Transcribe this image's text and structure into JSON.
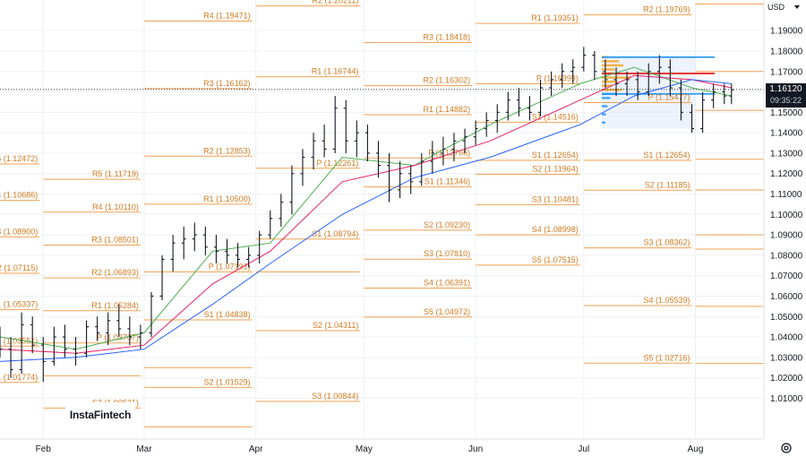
{
  "header": {
    "currency": "USD"
  },
  "watermark": "InstaFintech",
  "last_price": {
    "value": "1.16120",
    "countdown": "09:35:22"
  },
  "icons": {
    "settings": "gear-icon",
    "currency_dropdown": "chevron-down-icon"
  },
  "colors": {
    "pivot": "#f0a252",
    "pivot_text": "#d17b1f",
    "ma_fast": "#4caf50",
    "ma_mid": "#e91e63",
    "ma_slow": "#2962ff",
    "candle": "#131722",
    "grid": "#eef0f3",
    "profile_fill": "#f5a623",
    "profile_blue": "#2196f3",
    "level_red": "#e53935"
  },
  "chart_data": {
    "type": "candlestick",
    "symbol_quote": "USD",
    "y_range": [
      0.99,
      1.205
    ],
    "x_range": [
      "2025-01-20",
      "2025-08-20"
    ],
    "y_ticks": [
      "1.19000",
      "1.18000",
      "1.17000",
      "1.16000",
      "1.15000",
      "1.14000",
      "1.13000",
      "1.12000",
      "1.11000",
      "1.10000",
      "1.09000",
      "1.08000",
      "1.07000",
      "1.06000",
      "1.05000",
      "1.04000",
      "1.03000",
      "1.02000",
      "1.01000"
    ],
    "x_ticks": [
      {
        "label": "Feb",
        "date": "2025-02-01"
      },
      {
        "label": "Mar",
        "date": "2025-03-01"
      },
      {
        "label": "Apr",
        "date": "2025-04-01"
      },
      {
        "label": "May",
        "date": "2025-05-01"
      },
      {
        "label": "Jun",
        "date": "2025-06-01"
      },
      {
        "label": "Jul",
        "date": "2025-07-01"
      },
      {
        "label": "Aug",
        "date": "2025-08-01"
      }
    ],
    "last_price": 1.1612,
    "pivot_periods": [
      {
        "from": "2025-01-20",
        "to": "2025-01-31",
        "levels": [
          {
            "name": "R5",
            "label": "5 (1.12472)",
            "value": 1.12472
          },
          {
            "name": "R4",
            "label": "4 (1.10686)",
            "value": 1.10686
          },
          {
            "name": "R3",
            "label": "3 (1.08900)",
            "value": 1.089
          },
          {
            "name": "R2",
            "label": "2 (1.07115)",
            "value": 1.07115
          },
          {
            "name": "R1",
            "label": "1 (1.05337)",
            "value": 1.05337
          },
          {
            "name": "P",
            "label": "(1.03551)",
            "value": 1.03551
          },
          {
            "name": "S1",
            "label": "1 (1.01774)",
            "value": 1.01774
          }
        ]
      },
      {
        "from": "2025-02-01",
        "to": "2025-02-28",
        "levels": [
          {
            "name": "R5",
            "label": "R5 (1.11719)",
            "value": 1.11719
          },
          {
            "name": "R4",
            "label": "R4 (1.10110)",
            "value": 1.1011
          },
          {
            "name": "R3",
            "label": "R3 (1.08501)",
            "value": 1.08501
          },
          {
            "name": "R2",
            "label": "R2 (1.06893)",
            "value": 1.06893
          },
          {
            "name": "R1",
            "label": "R1 (1.05284)",
            "value": 1.05284
          },
          {
            "name": "P",
            "label": "P (1.03707)",
            "value": 1.03707
          },
          {
            "name": "S1",
            "label": "",
            "value": 1.021
          },
          {
            "name": "S2",
            "label": "S2 (1.00521)",
            "value": 1.00521
          }
        ]
      },
      {
        "from": "2025-03-01",
        "to": "2025-03-31",
        "levels": [
          {
            "name": "R4",
            "label": "R4 (1.19471)",
            "value": 1.19471
          },
          {
            "name": "R3",
            "label": "R3 (1.16162)",
            "value": 1.16162
          },
          {
            "name": "R2",
            "label": "R2 (1.12853)",
            "value": 1.12853
          },
          {
            "name": "R1",
            "label": "R1 (1.10500)",
            "value": 1.105
          },
          {
            "name": "P",
            "label": "P (1.07191)",
            "value": 1.07191
          },
          {
            "name": "S1",
            "label": "S1 (1.04838)",
            "value": 1.04838
          },
          {
            "name": "S2",
            "label": "",
            "value": 1.025
          },
          {
            "name": "S3",
            "label": "S2 (1.01529)",
            "value": 1.01529
          },
          {
            "name": "S4",
            "label": "",
            "value": 0.996
          }
        ]
      },
      {
        "from": "2025-04-01",
        "to": "2025-04-30",
        "levels": [
          {
            "name": "R2",
            "label": "R2 (1.20211)",
            "value": 1.20211
          },
          {
            "name": "R1",
            "label": "R1 (1.16744)",
            "value": 1.16744
          },
          {
            "name": "P",
            "label": "P (1.12261)",
            "value": 1.12261
          },
          {
            "name": "S1",
            "label": "S1 (1.08794)",
            "value": 1.08794
          },
          {
            "name": "S2",
            "label": "",
            "value": 1.07191
          },
          {
            "name": "S3",
            "label": "S2 (1.04311)",
            "value": 1.04311
          },
          {
            "name": "S4",
            "label": "S3 (1.00844)",
            "value": 1.00844
          }
        ]
      },
      {
        "from": "2025-05-01",
        "to": "2025-05-31",
        "levels": [
          {
            "name": "R3",
            "label": "R3 (1.18418)",
            "value": 1.18418
          },
          {
            "name": "R2",
            "label": "R2 (1.16302)",
            "value": 1.16302
          },
          {
            "name": "R1",
            "label": "R1 (1.14882)",
            "value": 1.14882
          },
          {
            "name": "P",
            "label": "P (1.12766)",
            "value": 1.12766
          },
          {
            "name": "S1",
            "label": "S1 (1.11346)",
            "value": 1.11346
          },
          {
            "name": "S2",
            "label": "S2 (1.09230)",
            "value": 1.0923
          },
          {
            "name": "S3",
            "label": "S3 (1.07810)",
            "value": 1.0781
          },
          {
            "name": "S4",
            "label": "S4 (1.06391)",
            "value": 1.06391
          },
          {
            "name": "S5",
            "label": "S5 (1.04972)",
            "value": 1.04972
          }
        ]
      },
      {
        "from": "2025-06-01",
        "to": "2025-06-30",
        "levels": [
          {
            "name": "R1",
            "label": "R1 (1.19351)",
            "value": 1.19351
          },
          {
            "name": "P",
            "label": "P (1.16399)",
            "value": 1.16399
          },
          {
            "name": "S1",
            "label": "S1 (1.14516)",
            "value": 1.14516
          },
          {
            "name": "S2",
            "label": "S1 (1.12654)",
            "value": 1.12654
          },
          {
            "name": "S3",
            "label": "S2 (1.11964)",
            "value": 1.11964
          },
          {
            "name": "S4",
            "label": "S3 (1.10481)",
            "value": 1.10481
          },
          {
            "name": "S5",
            "label": "S4 (1.08998)",
            "value": 1.08998
          },
          {
            "name": "S6",
            "label": "S5 (1.07515)",
            "value": 1.07515
          }
        ]
      },
      {
        "from": "2025-07-01",
        "to": "2025-07-31",
        "levels": [
          {
            "name": "R2",
            "label": "R2 (1.19769)",
            "value": 1.19769
          },
          {
            "name": "P",
            "label": "P (1.15477)",
            "value": 1.15477
          },
          {
            "name": "S1",
            "label": "S1 (1.12654)",
            "value": 1.12654
          },
          {
            "name": "S2",
            "label": "S2 (1.11185)",
            "value": 1.11185
          },
          {
            "name": "S3",
            "label": "S3 (1.08362)",
            "value": 1.08362
          },
          {
            "name": "S4",
            "label": "S4 (1.05539)",
            "value": 1.05539
          },
          {
            "name": "S5",
            "label": "S5 (1.02716)",
            "value": 1.02716
          }
        ]
      },
      {
        "from": "2025-08-01",
        "to": "2025-08-20",
        "levels": [
          {
            "name": "R",
            "label": "",
            "value": 1.203
          },
          {
            "name": "R1",
            "label": "",
            "value": 1.17
          },
          {
            "name": "P",
            "label": "",
            "value": 1.151
          },
          {
            "name": "S1",
            "label": "",
            "value": 1.127
          },
          {
            "name": "S2",
            "label": "",
            "value": 1.112
          },
          {
            "name": "S3",
            "label": "",
            "value": 1.09
          },
          {
            "name": "S4",
            "label": "",
            "value": 1.083
          },
          {
            "name": "S5",
            "label": "",
            "value": 1.055
          },
          {
            "name": "S6",
            "label": "",
            "value": 1.027
          }
        ]
      }
    ],
    "candles": [
      [
        "2025-01-20",
        1.041,
        1.045,
        1.03,
        1.034
      ],
      [
        "2025-01-23",
        1.034,
        1.04,
        1.02,
        1.024
      ],
      [
        "2025-01-26",
        1.024,
        1.052,
        1.022,
        1.046
      ],
      [
        "2025-01-29",
        1.046,
        1.05,
        1.032,
        1.036
      ],
      [
        "2025-02-01",
        1.036,
        1.04,
        1.018,
        1.028
      ],
      [
        "2025-02-04",
        1.028,
        1.045,
        1.026,
        1.04
      ],
      [
        "2025-02-07",
        1.04,
        1.046,
        1.03,
        1.034
      ],
      [
        "2025-02-10",
        1.034,
        1.04,
        1.026,
        1.032
      ],
      [
        "2025-02-13",
        1.032,
        1.048,
        1.03,
        1.045
      ],
      [
        "2025-02-16",
        1.045,
        1.05,
        1.038,
        1.042
      ],
      [
        "2025-02-19",
        1.042,
        1.052,
        1.036,
        1.048
      ],
      [
        "2025-02-22",
        1.048,
        1.056,
        1.04,
        1.044
      ],
      [
        "2025-02-25",
        1.044,
        1.05,
        1.036,
        1.04
      ],
      [
        "2025-02-28",
        1.04,
        1.046,
        1.034,
        1.042
      ],
      [
        "2025-03-03",
        1.042,
        1.062,
        1.04,
        1.06
      ],
      [
        "2025-03-06",
        1.06,
        1.08,
        1.058,
        1.078
      ],
      [
        "2025-03-09",
        1.078,
        1.09,
        1.072,
        1.086
      ],
      [
        "2025-03-12",
        1.086,
        1.094,
        1.078,
        1.088
      ],
      [
        "2025-03-15",
        1.088,
        1.096,
        1.082,
        1.09
      ],
      [
        "2025-03-18",
        1.09,
        1.094,
        1.08,
        1.084
      ],
      [
        "2025-03-21",
        1.084,
        1.09,
        1.076,
        1.082
      ],
      [
        "2025-03-24",
        1.082,
        1.088,
        1.076,
        1.08
      ],
      [
        "2025-03-27",
        1.08,
        1.086,
        1.074,
        1.078
      ],
      [
        "2025-03-30",
        1.078,
        1.084,
        1.074,
        1.08
      ],
      [
        "2025-04-02",
        1.08,
        1.092,
        1.076,
        1.09
      ],
      [
        "2025-04-05",
        1.09,
        1.102,
        1.088,
        1.098
      ],
      [
        "2025-04-08",
        1.098,
        1.11,
        1.094,
        1.106
      ],
      [
        "2025-04-11",
        1.106,
        1.124,
        1.1,
        1.12
      ],
      [
        "2025-04-14",
        1.12,
        1.132,
        1.114,
        1.128
      ],
      [
        "2025-04-17",
        1.128,
        1.14,
        1.122,
        1.136
      ],
      [
        "2025-04-20",
        1.136,
        1.144,
        1.128,
        1.132
      ],
      [
        "2025-04-23",
        1.132,
        1.158,
        1.13,
        1.152
      ],
      [
        "2025-04-26",
        1.152,
        1.156,
        1.13,
        1.136
      ],
      [
        "2025-04-29",
        1.136,
        1.146,
        1.128,
        1.14
      ],
      [
        "2025-05-02",
        1.14,
        1.144,
        1.126,
        1.13
      ],
      [
        "2025-05-05",
        1.13,
        1.136,
        1.118,
        1.124
      ],
      [
        "2025-05-08",
        1.124,
        1.13,
        1.106,
        1.112
      ],
      [
        "2025-05-11",
        1.112,
        1.126,
        1.108,
        1.12
      ],
      [
        "2025-05-14",
        1.12,
        1.124,
        1.11,
        1.116
      ],
      [
        "2025-05-17",
        1.116,
        1.13,
        1.114,
        1.126
      ],
      [
        "2025-05-20",
        1.126,
        1.136,
        1.12,
        1.13
      ],
      [
        "2025-05-23",
        1.13,
        1.138,
        1.124,
        1.132
      ],
      [
        "2025-05-26",
        1.132,
        1.14,
        1.126,
        1.136
      ],
      [
        "2025-05-29",
        1.136,
        1.142,
        1.13,
        1.138
      ],
      [
        "2025-06-01",
        1.138,
        1.146,
        1.134,
        1.142
      ],
      [
        "2025-06-04",
        1.142,
        1.15,
        1.138,
        1.146
      ],
      [
        "2025-06-07",
        1.146,
        1.154,
        1.14,
        1.15
      ],
      [
        "2025-06-10",
        1.15,
        1.16,
        1.146,
        1.156
      ],
      [
        "2025-06-13",
        1.156,
        1.162,
        1.148,
        1.152
      ],
      [
        "2025-06-16",
        1.152,
        1.158,
        1.146,
        1.15
      ],
      [
        "2025-06-19",
        1.15,
        1.166,
        1.148,
        1.162
      ],
      [
        "2025-06-22",
        1.162,
        1.17,
        1.158,
        1.166
      ],
      [
        "2025-06-25",
        1.166,
        1.174,
        1.162,
        1.17
      ],
      [
        "2025-06-28",
        1.17,
        1.176,
        1.164,
        1.172
      ],
      [
        "2025-07-01",
        1.172,
        1.182,
        1.17,
        1.178
      ],
      [
        "2025-07-04",
        1.178,
        1.18,
        1.166,
        1.17
      ],
      [
        "2025-07-07",
        1.17,
        1.176,
        1.162,
        1.166
      ],
      [
        "2025-07-10",
        1.166,
        1.172,
        1.158,
        1.164
      ],
      [
        "2025-07-13",
        1.164,
        1.17,
        1.158,
        1.166
      ],
      [
        "2025-07-16",
        1.166,
        1.17,
        1.156,
        1.16
      ],
      [
        "2025-07-19",
        1.16,
        1.174,
        1.158,
        1.17
      ],
      [
        "2025-07-22",
        1.17,
        1.178,
        1.164,
        1.172
      ],
      [
        "2025-07-25",
        1.172,
        1.176,
        1.158,
        1.162
      ],
      [
        "2025-07-28",
        1.162,
        1.166,
        1.146,
        1.15
      ],
      [
        "2025-07-31",
        1.15,
        1.154,
        1.14,
        1.142
      ],
      [
        "2025-08-03",
        1.142,
        1.16,
        1.14,
        1.156
      ],
      [
        "2025-08-06",
        1.156,
        1.164,
        1.152,
        1.16
      ],
      [
        "2025-08-09",
        1.16,
        1.164,
        1.154,
        1.158
      ],
      [
        "2025-08-11",
        1.158,
        1.164,
        1.154,
        1.161
      ]
    ],
    "moving_averages": [
      {
        "color": "#4caf50",
        "points": [
          [
            "2025-01-20",
            1.04
          ],
          [
            "2025-02-10",
            1.034
          ],
          [
            "2025-03-01",
            1.042
          ],
          [
            "2025-03-20",
            1.082
          ],
          [
            "2025-04-05",
            1.086
          ],
          [
            "2025-04-25",
            1.128
          ],
          [
            "2025-05-15",
            1.124
          ],
          [
            "2025-06-05",
            1.144
          ],
          [
            "2025-06-30",
            1.164
          ],
          [
            "2025-07-15",
            1.172
          ],
          [
            "2025-07-31",
            1.162
          ],
          [
            "2025-08-11",
            1.158
          ]
        ]
      },
      {
        "color": "#e91e63",
        "points": [
          [
            "2025-01-20",
            1.034
          ],
          [
            "2025-02-10",
            1.032
          ],
          [
            "2025-03-01",
            1.036
          ],
          [
            "2025-03-20",
            1.066
          ],
          [
            "2025-04-05",
            1.082
          ],
          [
            "2025-04-25",
            1.116
          ],
          [
            "2025-05-15",
            1.124
          ],
          [
            "2025-06-05",
            1.136
          ],
          [
            "2025-06-30",
            1.156
          ],
          [
            "2025-07-15",
            1.168
          ],
          [
            "2025-07-31",
            1.166
          ],
          [
            "2025-08-11",
            1.162
          ]
        ]
      },
      {
        "color": "#2962ff",
        "points": [
          [
            "2025-01-20",
            1.028
          ],
          [
            "2025-02-10",
            1.03
          ],
          [
            "2025-03-01",
            1.034
          ],
          [
            "2025-03-20",
            1.056
          ],
          [
            "2025-04-05",
            1.076
          ],
          [
            "2025-04-25",
            1.1
          ],
          [
            "2025-05-15",
            1.118
          ],
          [
            "2025-06-05",
            1.128
          ],
          [
            "2025-06-30",
            1.144
          ],
          [
            "2025-07-15",
            1.158
          ],
          [
            "2025-07-31",
            1.166
          ],
          [
            "2025-08-11",
            1.164
          ]
        ]
      }
    ],
    "volume_profile": {
      "from": "2025-07-06",
      "to": "2025-08-01",
      "value_area": [
        1.142,
        1.178
      ],
      "poc": 1.168,
      "red_level": 1.169,
      "blue_levels": [
        1.177,
        1.159
      ]
    }
  }
}
